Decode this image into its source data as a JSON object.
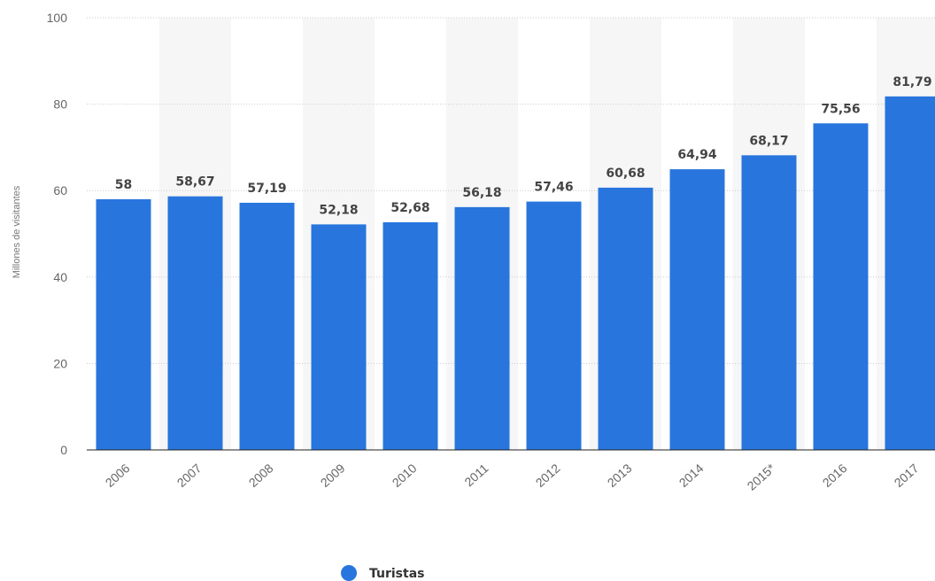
{
  "chart_data": {
    "type": "bar",
    "ylabel": "Millones de visitantes",
    "categories": [
      "2006",
      "2007",
      "2008",
      "2009",
      "2010",
      "2011",
      "2012",
      "2013",
      "2014",
      "2015*",
      "2016",
      "2017"
    ],
    "series": [
      {
        "name": "Turistas",
        "values": [
          58,
          58.67,
          57.19,
          52.18,
          52.68,
          56.18,
          57.46,
          60.68,
          64.94,
          68.17,
          75.56,
          81.79
        ],
        "labels": [
          "58",
          "58,67",
          "57,19",
          "52,18",
          "52,68",
          "56,18",
          "57,46",
          "60,68",
          "64,94",
          "68,17",
          "75,56",
          "81,79"
        ],
        "color": "#2876dd"
      }
    ],
    "ylim": [
      0,
      100
    ],
    "yticks": [
      0,
      20,
      40,
      60,
      80,
      100
    ],
    "grid": true,
    "legend_position": "bottom"
  },
  "colors": {
    "bar": "#2876dd",
    "band": "#f6f6f6",
    "grid": "#cccccc",
    "axis": "#222222"
  }
}
